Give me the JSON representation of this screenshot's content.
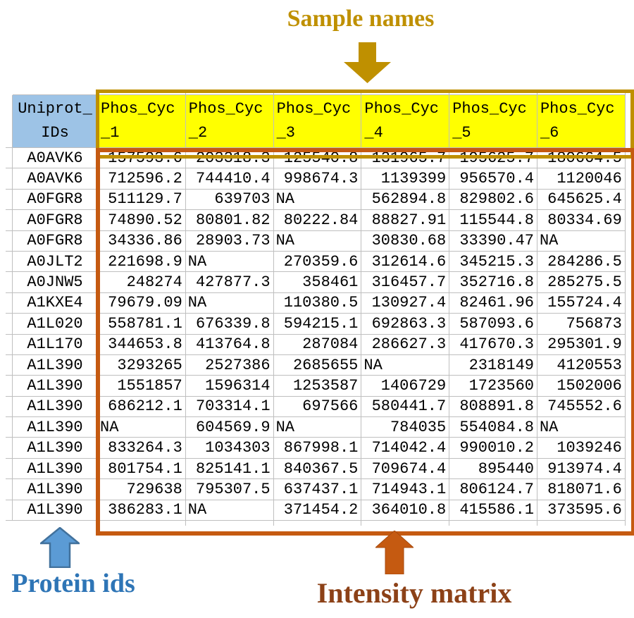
{
  "annotations": {
    "sample_names_label": "Sample names",
    "protein_ids_label": "Protein ids",
    "intensity_matrix_label": "Intensity matrix"
  },
  "colors": {
    "gold": "#BF9000",
    "header_fill": "#FFFF00",
    "id_header_fill": "#9DC3E6",
    "matrix_border": "#C55A11",
    "blue_arrow_fill": "#5B9BD5",
    "blue_arrow_stroke": "#41719C",
    "blue_label": "#2E75B6",
    "intensity_label": "#8C4117",
    "gridline": "#BFBFBF"
  },
  "table": {
    "id_header": {
      "line1": "Uniprot_",
      "line2": "IDs"
    },
    "sample_headers": [
      {
        "line1": "Phos_Cyc",
        "line2": "_1"
      },
      {
        "line1": "Phos_Cyc",
        "line2": "_2"
      },
      {
        "line1": "Phos_Cyc",
        "line2": "_3"
      },
      {
        "line1": "Phos_Cyc",
        "line2": "_4"
      },
      {
        "line1": "Phos_Cyc",
        "line2": "_5"
      },
      {
        "line1": "Phos_Cyc",
        "line2": "_6"
      }
    ],
    "rows": [
      {
        "id": "A0AVK6",
        "values": [
          "157593.6",
          "203318.3",
          "125540.8",
          "131965.7",
          "195625.7",
          "180664.5"
        ]
      },
      {
        "id": "A0AVK6",
        "values": [
          "712596.2",
          "744410.4",
          "998674.3",
          "1139399",
          "956570.4",
          "1120046"
        ]
      },
      {
        "id": "A0FGR8",
        "values": [
          "511129.7",
          "639703",
          "NA",
          "562894.8",
          "829802.6",
          "645625.4"
        ]
      },
      {
        "id": "A0FGR8",
        "values": [
          "74890.52",
          "80801.82",
          "80222.84",
          "88827.91",
          "115544.8",
          "80334.69"
        ]
      },
      {
        "id": "A0FGR8",
        "values": [
          "34336.86",
          "28903.73",
          "NA",
          "30830.68",
          "33390.47",
          "NA"
        ]
      },
      {
        "id": "A0JLT2",
        "values": [
          "221698.9",
          "NA",
          "270359.6",
          "312614.6",
          "345215.3",
          "284286.5"
        ]
      },
      {
        "id": "A0JNW5",
        "values": [
          "248274",
          "427877.3",
          "358461",
          "316457.7",
          "352716.8",
          "285275.5"
        ]
      },
      {
        "id": "A1KXE4",
        "values": [
          "79679.09",
          "NA",
          "110380.5",
          "130927.4",
          "82461.96",
          "155724.4"
        ]
      },
      {
        "id": "A1L020",
        "values": [
          "558781.1",
          "676339.8",
          "594215.1",
          "692863.3",
          "587093.6",
          "756873"
        ]
      },
      {
        "id": "A1L170",
        "values": [
          "344653.8",
          "413764.8",
          "287084",
          "286627.3",
          "417670.3",
          "295301.9"
        ]
      },
      {
        "id": "A1L390",
        "values": [
          "3293265",
          "2527386",
          "2685655",
          "NA",
          "2318149",
          "4120553"
        ]
      },
      {
        "id": "A1L390",
        "values": [
          "1551857",
          "1596314",
          "1253587",
          "1406729",
          "1723560",
          "1502006"
        ]
      },
      {
        "id": "A1L390",
        "values": [
          "686212.1",
          "703314.1",
          "697566",
          "580441.7",
          "808891.8",
          "745552.6"
        ]
      },
      {
        "id": "A1L390",
        "values": [
          "NA",
          "604569.9",
          "NA",
          "784035",
          "554084.8",
          "NA"
        ]
      },
      {
        "id": "A1L390",
        "values": [
          "833264.3",
          "1034303",
          "867998.1",
          "714042.4",
          "990010.2",
          "1039246"
        ]
      },
      {
        "id": "A1L390",
        "values": [
          "801754.1",
          "825141.1",
          "840367.5",
          "709674.4",
          "895440",
          "913974.4"
        ]
      },
      {
        "id": "A1L390",
        "values": [
          "729638",
          "795307.5",
          "637437.1",
          "714943.1",
          "806124.7",
          "818071.6"
        ]
      },
      {
        "id": "A1L390",
        "values": [
          "386283.1",
          "NA",
          "371454.2",
          "364010.8",
          "415586.1",
          "373595.6"
        ]
      }
    ]
  }
}
